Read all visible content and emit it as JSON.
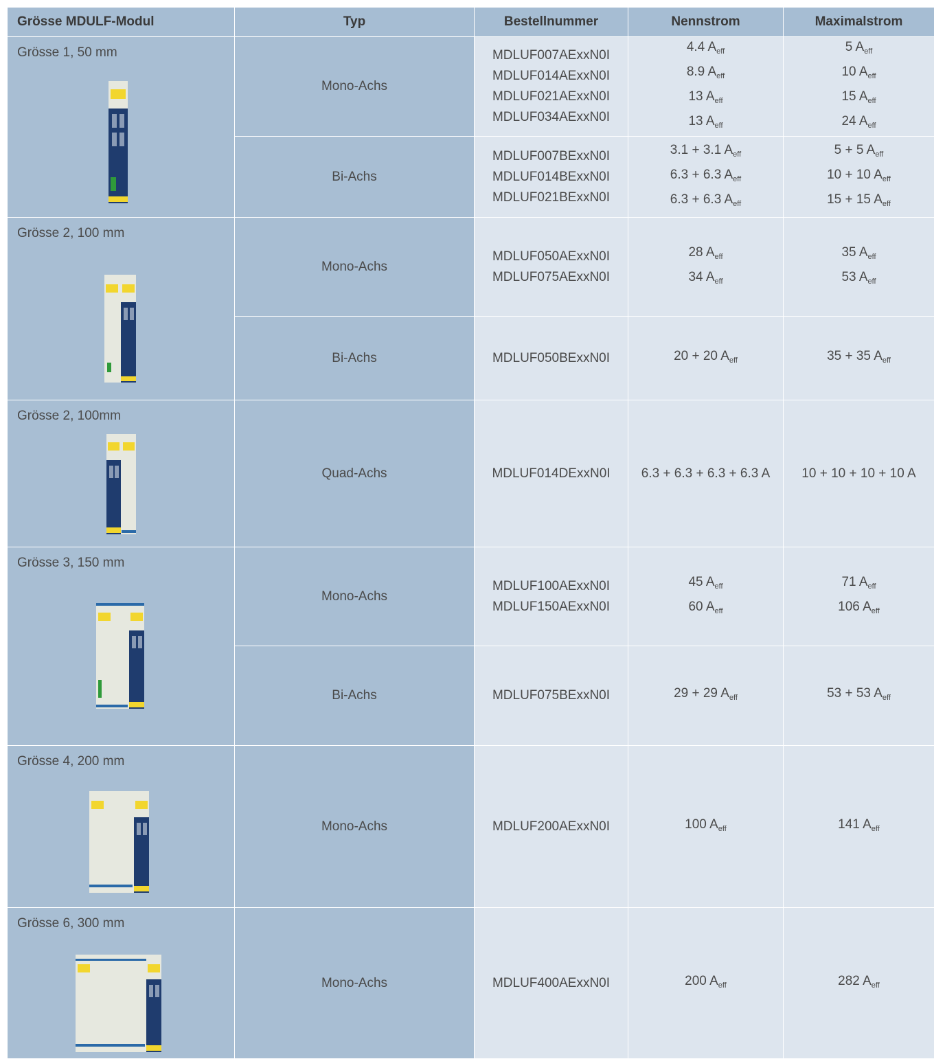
{
  "table": {
    "header": [
      "Grösse MDULF-Modul",
      "Typ",
      "Bestellnummer",
      "Nennstrom",
      "Maximalstrom"
    ],
    "groups": [
      {
        "size": "Grösse 1, 50 mm",
        "rows": [
          {
            "type": "Mono-Achs",
            "orders": [
              "MDLUF007AExxN0I",
              "MDLUF014AExxN0I",
              "MDLUF021AExxN0I",
              "MDLUF034AExxN0I"
            ],
            "nominal": [
              {
                "text": "4.4 A",
                "sub": "eff"
              },
              {
                "text": "8.9 A",
                "sub": "eff"
              },
              {
                "text": "13 A",
                "sub": "eff"
              },
              {
                "text": "13 A",
                "sub": "eff"
              }
            ],
            "max": [
              {
                "text": "5 A",
                "sub": "eff"
              },
              {
                "text": "10 A",
                "sub": "eff"
              },
              {
                "text": "15 A",
                "sub": "eff"
              },
              {
                "text": "24 A",
                "sub": "eff"
              }
            ]
          },
          {
            "type": "Bi-Achs",
            "orders": [
              "MDLUF007BExxN0I",
              "MDLUF014BExxN0I",
              "MDLUF021BExxN0I"
            ],
            "nominal": [
              {
                "text": "3.1 + 3.1 A",
                "sub": "eff"
              },
              {
                "text": "6.3 + 6.3 A",
                "sub": "eff"
              },
              {
                "text": "6.3 + 6.3 A",
                "sub": "eff"
              }
            ],
            "max": [
              {
                "text": "5 + 5 A",
                "sub": "eff"
              },
              {
                "text": "10 + 10 A",
                "sub": "eff"
              },
              {
                "text": "15 + 15 A",
                "sub": "eff"
              }
            ]
          }
        ]
      },
      {
        "size": "Grösse 2, 100 mm",
        "rows": [
          {
            "type": "Mono-Achs",
            "orders": [
              "MDLUF050AExxN0I",
              "MDLUF075AExxN0I"
            ],
            "nominal": [
              {
                "text": "28 A",
                "sub": "eff"
              },
              {
                "text": "34 A",
                "sub": "eff"
              }
            ],
            "max": [
              {
                "text": "35 A",
                "sub": "eff"
              },
              {
                "text": "53 A",
                "sub": "eff"
              }
            ]
          },
          {
            "type": "Bi-Achs",
            "orders": [
              "MDLUF050BExxN0I"
            ],
            "nominal": [
              {
                "text": "20 + 20 A",
                "sub": "eff"
              }
            ],
            "max": [
              {
                "text": "35 + 35 A",
                "sub": "eff"
              }
            ]
          }
        ]
      },
      {
        "size": "Grösse 2, 100mm",
        "rows": [
          {
            "type": "Quad-Achs",
            "orders": [
              "MDLUF014DExxN0I"
            ],
            "nominal": [
              {
                "text": "6.3 + 6.3 + 6.3 + 6.3 A"
              }
            ],
            "max": [
              {
                "text": "10 + 10 + 10 + 10 A"
              }
            ]
          }
        ]
      },
      {
        "size": "Grösse 3, 150 mm",
        "rows": [
          {
            "type": "Mono-Achs",
            "orders": [
              "MDLUF100AExxN0I",
              "MDLUF150AExxN0I"
            ],
            "nominal": [
              {
                "text": "45 A",
                "sub": "eff"
              },
              {
                "text": "60 A",
                "sub": "eff"
              }
            ],
            "max": [
              {
                "text": "71 A",
                "sub": "eff"
              },
              {
                "text": "106 A",
                "sub": "eff"
              }
            ]
          },
          {
            "type": "Bi-Achs",
            "orders": [
              "MDLUF075BExxN0I"
            ],
            "nominal": [
              {
                "text": "29 + 29 A",
                "sub": "eff"
              }
            ],
            "max": [
              {
                "text": "53 + 53 A",
                "sub": "eff"
              }
            ]
          }
        ]
      },
      {
        "size": "Grösse 4, 200 mm",
        "rows": [
          {
            "type": "Mono-Achs",
            "orders": [
              "MDLUF200AExxN0I"
            ],
            "nominal": [
              {
                "text": "100 A",
                "sub": "eff"
              }
            ],
            "max": [
              {
                "text": "141 A",
                "sub": "eff"
              }
            ]
          }
        ]
      },
      {
        "size": "Grösse 6, 300 mm",
        "rows": [
          {
            "type": "Mono-Achs",
            "orders": [
              "MDLUF400AExxN0I"
            ],
            "nominal": [
              {
                "text": "200 A",
                "sub": "eff"
              }
            ],
            "max": [
              {
                "text": "282 A",
                "sub": "eff"
              }
            ]
          }
        ]
      }
    ]
  }
}
